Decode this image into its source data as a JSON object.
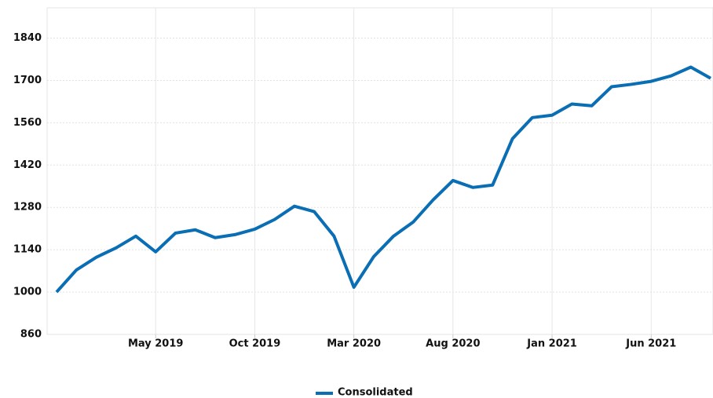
{
  "chart_data": {
    "type": "line",
    "categories": [
      null,
      null,
      null,
      null,
      null,
      "May 2019",
      null,
      null,
      null,
      null,
      "Oct 2019",
      null,
      null,
      null,
      null,
      "Mar 2020",
      null,
      null,
      null,
      null,
      "Aug 2020",
      null,
      null,
      null,
      null,
      "Jan 2021",
      null,
      null,
      null,
      null,
      "Jun 2021",
      null,
      null,
      null
    ],
    "series": [
      {
        "name": "Consolidated",
        "color": "#0a6eb4",
        "values": [
          1000,
          1073,
          1115,
          1146,
          1185,
          1133,
          1195,
          1206,
          1180,
          1190,
          1208,
          1240,
          1284,
          1266,
          1185,
          1016,
          1117,
          1185,
          1232,
          1305,
          1369,
          1346,
          1354,
          1507,
          1577,
          1585,
          1622,
          1616,
          1679,
          1687,
          1697,
          1715,
          1744,
          1707
        ]
      }
    ],
    "ylim": [
      860,
      1940
    ],
    "yticks": [
      860,
      1000,
      1140,
      1280,
      1420,
      1560,
      1700,
      1840
    ],
    "grid": true,
    "legend": "bottom"
  }
}
